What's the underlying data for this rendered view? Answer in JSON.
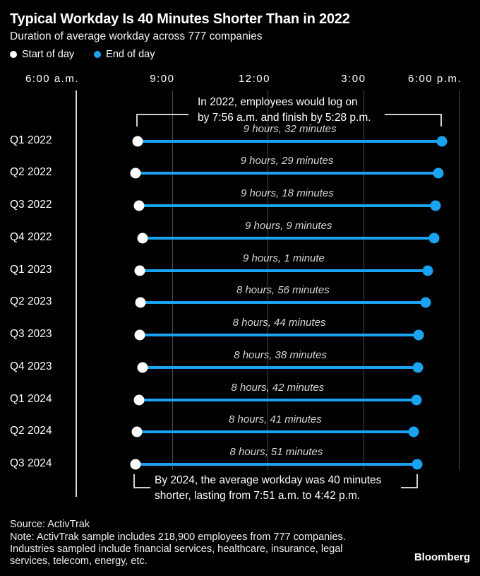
{
  "header": {
    "title": "Typical Workday Is 40 Minutes Shorter Than in 2022",
    "subtitle": "Duration of average workday across 777 companies"
  },
  "legend": {
    "start": {
      "label": "Start of day",
      "color": "#ffffff"
    },
    "end": {
      "label": "End of day",
      "color": "#1aa3f0"
    }
  },
  "chart_data": {
    "type": "dumbbell",
    "title": "Typical Workday Is 40 Minutes Shorter Than in 2022",
    "subtitle": "Duration of average workday across 777 companies",
    "x_axis": {
      "ticks": [
        {
          "label": "6:00 a.m.",
          "hour": 6
        },
        {
          "label": "9:00",
          "hour": 9
        },
        {
          "label": "12:00",
          "hour": 12
        },
        {
          "label": "3:00",
          "hour": 15
        },
        {
          "label": "6:00 p.m.",
          "hour": 18
        }
      ],
      "range_hours": [
        6,
        18
      ],
      "grid": true
    },
    "categories": [
      "Q1 2022",
      "Q2 2022",
      "Q3 2022",
      "Q4 2022",
      "Q1 2023",
      "Q2 2023",
      "Q3 2023",
      "Q4 2023",
      "Q1 2024",
      "Q2 2024",
      "Q3 2024"
    ],
    "series": [
      {
        "name": "Start of day",
        "values": [
          "7:56",
          "7:52",
          "7:58",
          "8:05",
          "8:00",
          "8:01",
          "8:00",
          "8:05",
          "7:58",
          "7:54",
          "7:51"
        ]
      },
      {
        "name": "End of day",
        "values": [
          "17:28",
          "17:21",
          "17:16",
          "17:14",
          "17:01",
          "16:57",
          "16:44",
          "16:43",
          "16:40",
          "16:35",
          "16:42"
        ]
      }
    ],
    "duration_labels": [
      "9 hours, 32 minutes",
      "9 hours, 29 minutes",
      "9 hours, 18 minutes",
      "9 hours, 9 minutes",
      "9 hours, 1 minute",
      "8 hours, 56 minutes",
      "8 hours, 44 minutes",
      "8 hours, 38 minutes",
      "8 hours, 42 minutes",
      "8 hours, 41 minutes",
      "8 hours, 51 minutes"
    ],
    "legend_position": "top-left"
  },
  "annotations": {
    "top": {
      "line1": "In 2022, employees would log on",
      "line2": "by 7:56 a.m. and finish by 5:28 p.m."
    },
    "bottom": {
      "line1": "By 2024, the average workday was 40 minutes",
      "line2": "shorter, lasting from 7:51 a.m. to 4:42 p.m."
    }
  },
  "footer": {
    "source": "Source: ActivTrak",
    "note_line_1": "Note: ActivTrak sample includes 218,900 employees from 777 companies.",
    "note_line_2": "Industries sampled include financial services, healthcare, insurance, legal",
    "note_line_3": "services, telecom, energy, etc.",
    "brand": "Bloomberg"
  },
  "colors": {
    "background": "#000000",
    "accent_blue": "#1aa3f0",
    "start_dot": "#ffffff",
    "grid_line": "#4d4d4d",
    "axis_line": "#d9d9d9",
    "duration_text": "#d6d6d6"
  }
}
